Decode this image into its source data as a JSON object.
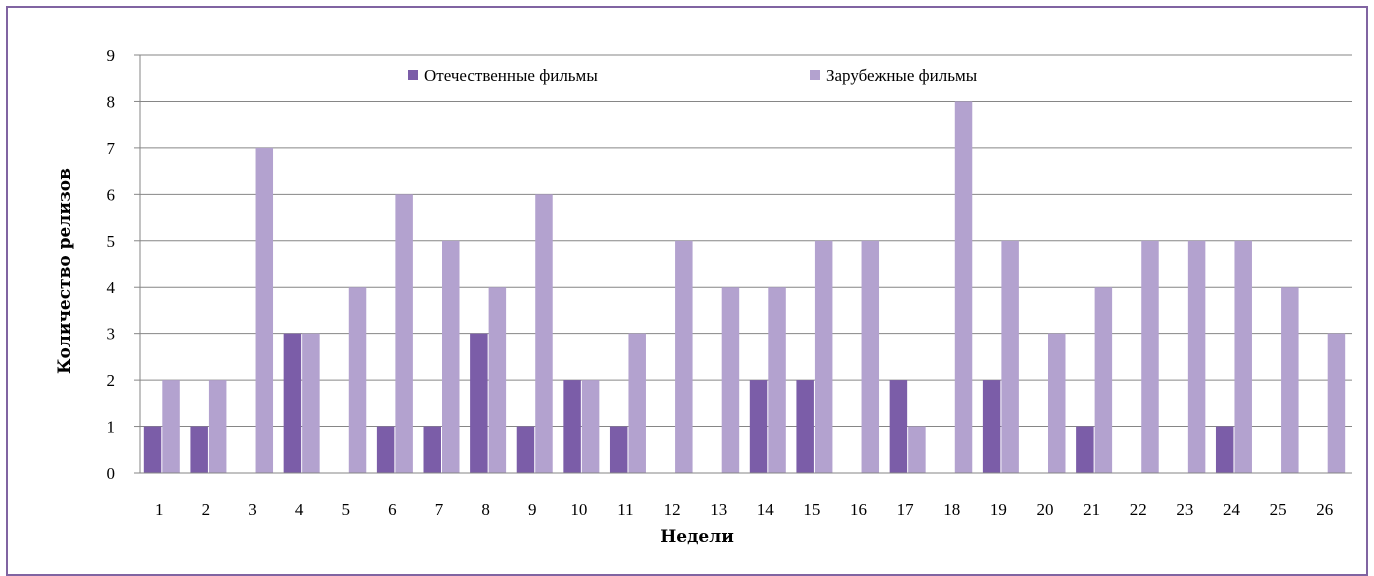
{
  "chart_data": {
    "type": "bar",
    "title": "",
    "xlabel": "Недели",
    "ylabel": "Количество релизов",
    "ylim": [
      0,
      9
    ],
    "yticks": [
      "0",
      "1",
      "2",
      "3",
      "4",
      "5",
      "6",
      "7",
      "8",
      "9"
    ],
    "grid": true,
    "legend_position": "top",
    "categories": [
      "1",
      "2",
      "3",
      "4",
      "5",
      "6",
      "7",
      "8",
      "9",
      "10",
      "11",
      "12",
      "13",
      "14",
      "15",
      "16",
      "17",
      "18",
      "19",
      "20",
      "21",
      "22",
      "23",
      "24",
      "25",
      "26"
    ],
    "series": [
      {
        "name": "Отечественные фильмы",
        "color": "#7b5da8",
        "values": [
          1,
          1,
          0,
          3,
          0,
          1,
          1,
          3,
          1,
          2,
          1,
          0,
          0,
          2,
          2,
          0,
          2,
          0,
          2,
          0,
          1,
          0,
          0,
          1,
          0,
          0
        ]
      },
      {
        "name": "Зарубежные фильмы",
        "color": "#b3a2cf",
        "values": [
          2,
          2,
          7,
          3,
          4,
          6,
          5,
          4,
          6,
          2,
          3,
          5,
          4,
          4,
          5,
          5,
          1,
          8,
          5,
          3,
          4,
          5,
          5,
          5,
          4,
          3
        ]
      }
    ]
  }
}
